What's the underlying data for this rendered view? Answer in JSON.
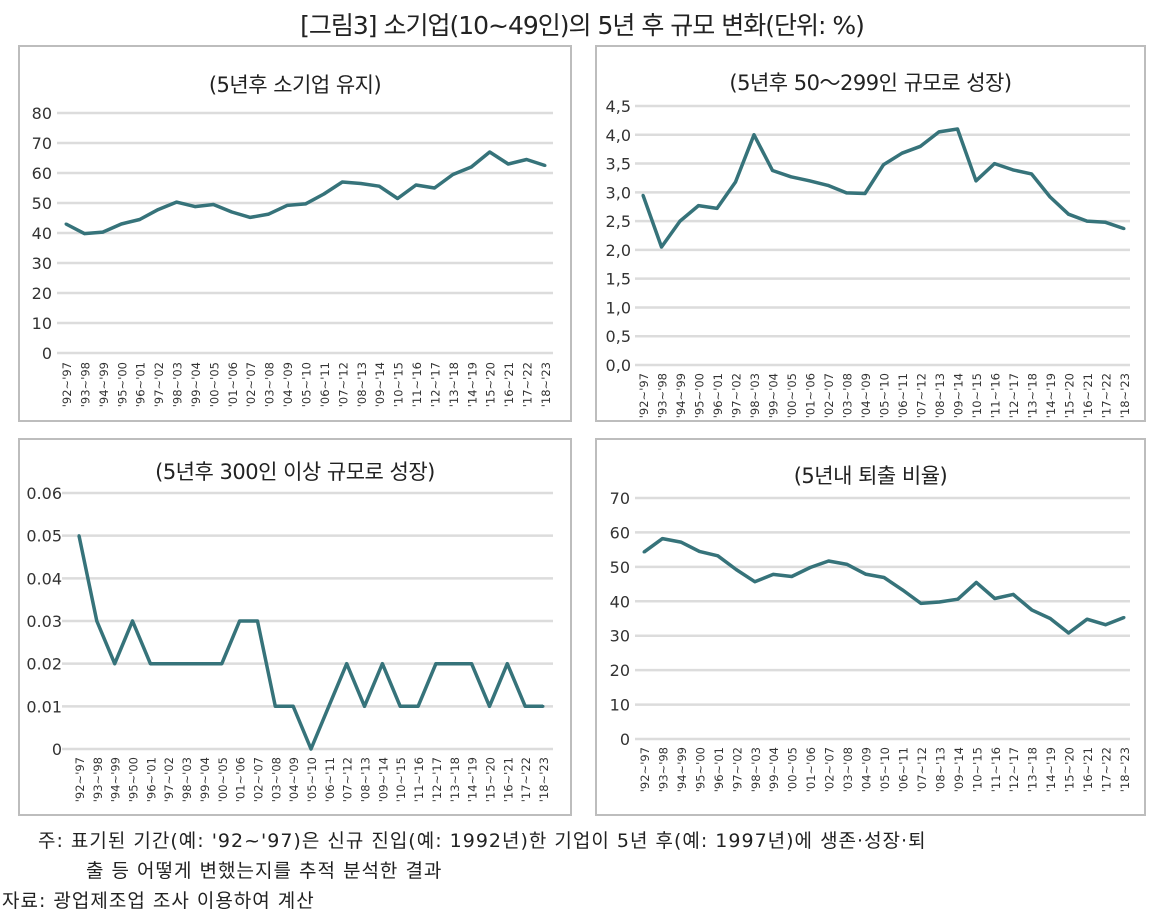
{
  "title": "[그림3] 소기업(10~49인)의 5년 후 규모 변화(단위: %)",
  "colors": {
    "line": "#36737a",
    "grid": "#dcdcdc",
    "border": "#bdbdbd"
  },
  "chart_data": [
    {
      "type": "line",
      "title": "(5년후 소기업 유지)",
      "categories": [
        "'92~'97",
        "'93~'98",
        "'94~'99",
        "'95~'00",
        "'96~'01",
        "'97~'02",
        "'98~'03",
        "'99~'04",
        "'00~'05",
        "'01~'06",
        "'02~'07",
        "'03~'08",
        "'04~'09",
        "'05~'10",
        "'06~'11",
        "'07~'12",
        "'08~'13",
        "'09~'14",
        "'10~'15",
        "'11~'16",
        "'12~'17",
        "'13~'18",
        "'14~'19",
        "'15~'20",
        "'16~'21",
        "'17~'22",
        "'18~'23"
      ],
      "values": [
        43.0,
        39.8,
        40.3,
        43.0,
        44.5,
        47.8,
        50.3,
        48.8,
        49.5,
        47.0,
        45.2,
        46.3,
        49.2,
        49.7,
        53.0,
        57.0,
        56.5,
        55.6,
        51.5,
        56.0,
        55.0,
        59.5,
        62.0,
        67.0,
        63.0,
        64.5,
        62.5
      ],
      "yticks": [
        "0",
        "10",
        "20",
        "30",
        "40",
        "50",
        "60",
        "70",
        "80"
      ],
      "ylim": [
        0,
        80
      ],
      "grid": true
    },
    {
      "type": "line",
      "title": "(5년후 50～299인 규모로 성장)",
      "categories": [
        "'92~'97",
        "'93~'98",
        "'94~'99",
        "'95~'00",
        "'96~'01",
        "'97~'02",
        "'98~'03",
        "'99~'04",
        "'00~'05",
        "'01~'06",
        "'02~'07",
        "'03~'08",
        "'04~'09",
        "'05~'10",
        "'06~'11",
        "'07~'12",
        "'08~'13",
        "'09~'14",
        "'10~'15",
        "'11~'16",
        "'12~'17",
        "'13~'18",
        "'14~'19",
        "'15~'20",
        "'16~'21",
        "'17~'22",
        "'18~'23"
      ],
      "values": [
        2.95,
        2.05,
        2.5,
        2.77,
        2.72,
        3.18,
        4.0,
        3.38,
        3.27,
        3.2,
        3.12,
        2.99,
        2.98,
        3.48,
        3.68,
        3.8,
        4.05,
        4.1,
        3.2,
        3.5,
        3.39,
        3.32,
        2.92,
        2.62,
        2.5,
        2.48,
        2.37
      ],
      "yticks": [
        "0,0",
        "0,5",
        "1,0",
        "1,5",
        "2,0",
        "2,5",
        "3,0",
        "3,5",
        "4,0",
        "4,5"
      ],
      "ylim": [
        0,
        4.5
      ],
      "grid": true
    },
    {
      "type": "line",
      "title": "(5년후 300인 이상 규모로 성장)",
      "categories": [
        "'92~'97",
        "'93~'98",
        "'94~'99",
        "'95~'00",
        "'96~'01",
        "'97~'02",
        "'98~'03",
        "'99~'04",
        "'00~'05",
        "'01~'06",
        "'02~'07",
        "'03~'08",
        "'04~'09",
        "'05~'10",
        "'06~'11",
        "'07~'12",
        "'08~'13",
        "'09~'14",
        "'10~'15",
        "'11~'16",
        "'12~'17",
        "'13~'18",
        "'14~'19",
        "'15~'20",
        "'16~'21",
        "'17~'22",
        "'18~'23"
      ],
      "values": [
        0.05,
        0.03,
        0.02,
        0.03,
        0.02,
        0.02,
        0.02,
        0.02,
        0.02,
        0.03,
        0.03,
        0.01,
        0.01,
        0,
        0.01,
        0.02,
        0.01,
        0.02,
        0.01,
        0.01,
        0.02,
        0.02,
        0.02,
        0.01,
        0.02,
        0.01,
        0.01
      ],
      "yticks": [
        "0",
        "0.01",
        "0.02",
        "0.03",
        "0.04",
        "0.05",
        "0.06"
      ],
      "ylim": [
        0,
        0.06
      ],
      "grid": true
    },
    {
      "type": "line",
      "title": "(5년내 퇴출 비율)",
      "categories": [
        "'92~'97",
        "'93~'98",
        "'94~'99",
        "'95~'00",
        "'96~'01",
        "'97~'02",
        "'98~'03",
        "'99~'04",
        "'00~'05",
        "'01~'06",
        "'02~'07",
        "'03~'08",
        "'04~'09",
        "'05~'10",
        "'06~'11",
        "'07~'12",
        "'08~'13",
        "'09~'14",
        "'10~'15",
        "'11~'16",
        "'12~'17",
        "'13~'18",
        "'14~'19",
        "'15~'20",
        "'16~'21",
        "'17~'22",
        "'18~'23"
      ],
      "values": [
        54.3,
        58.2,
        57.2,
        54.5,
        53.2,
        49.2,
        45.7,
        47.8,
        47.2,
        49.8,
        51.7,
        50.7,
        47.9,
        46.9,
        43.3,
        39.4,
        39.8,
        40.6,
        45.5,
        40.8,
        42.0,
        37.5,
        35.0,
        30.8,
        34.8,
        33.2,
        35.3
      ],
      "yticks": [
        "0",
        "10",
        "20",
        "30",
        "40",
        "50",
        "60",
        "70"
      ],
      "ylim": [
        0,
        70
      ],
      "grid": true
    }
  ],
  "notes": {
    "line1": "주: 표기된 기간(예: '92~'97)은 신규 진입(예: 1992년)한 기업이 5년 후(예: 1997년)에 생존·성장·퇴",
    "line2": "출 등 어떻게 변했는지를 추적 분석한 결과",
    "source": "자료: 광업제조업 조사 이용하여 계산"
  }
}
